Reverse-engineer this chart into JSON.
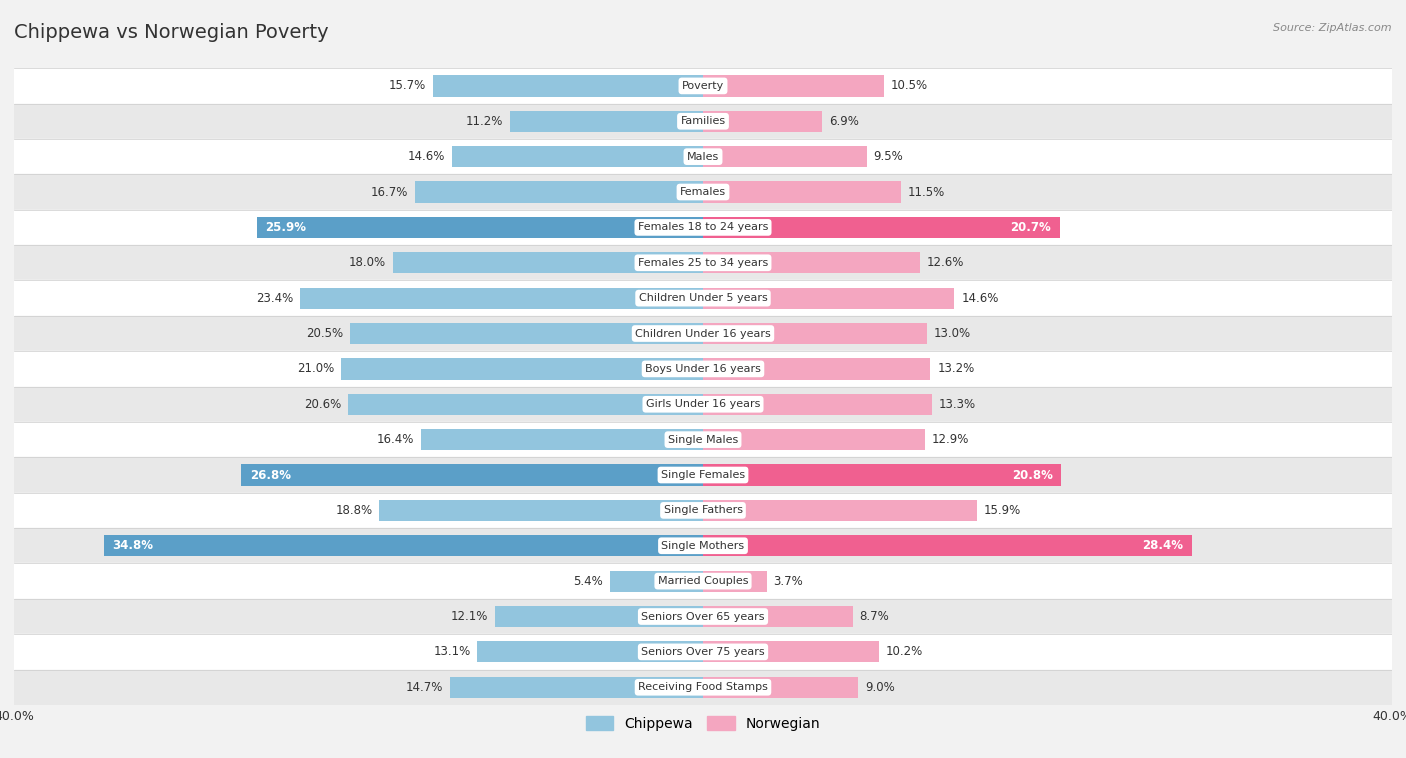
{
  "title": "Chippewa vs Norwegian Poverty",
  "source": "Source: ZipAtlas.com",
  "categories": [
    "Poverty",
    "Families",
    "Males",
    "Females",
    "Females 18 to 24 years",
    "Females 25 to 34 years",
    "Children Under 5 years",
    "Children Under 16 years",
    "Boys Under 16 years",
    "Girls Under 16 years",
    "Single Males",
    "Single Females",
    "Single Fathers",
    "Single Mothers",
    "Married Couples",
    "Seniors Over 65 years",
    "Seniors Over 75 years",
    "Receiving Food Stamps"
  ],
  "chippewa": [
    15.7,
    11.2,
    14.6,
    16.7,
    25.9,
    18.0,
    23.4,
    20.5,
    21.0,
    20.6,
    16.4,
    26.8,
    18.8,
    34.8,
    5.4,
    12.1,
    13.1,
    14.7
  ],
  "norwegian": [
    10.5,
    6.9,
    9.5,
    11.5,
    20.7,
    12.6,
    14.6,
    13.0,
    13.2,
    13.3,
    12.9,
    20.8,
    15.9,
    28.4,
    3.7,
    8.7,
    10.2,
    9.0
  ],
  "chippewa_color": "#92c5de",
  "norwegian_color": "#f4a6c0",
  "chippewa_highlight_color": "#5b9fc8",
  "norwegian_highlight_color": "#f06090",
  "highlight_rows": [
    4,
    11,
    13
  ],
  "background_color": "#f2f2f2",
  "row_even_color": "#ffffff",
  "row_odd_color": "#e8e8e8",
  "bar_height": 0.6,
  "xlim": 40.0,
  "legend_labels": [
    "Chippewa",
    "Norwegian"
  ],
  "label_fontsize": 8.5,
  "cat_fontsize": 8.0,
  "title_fontsize": 14
}
